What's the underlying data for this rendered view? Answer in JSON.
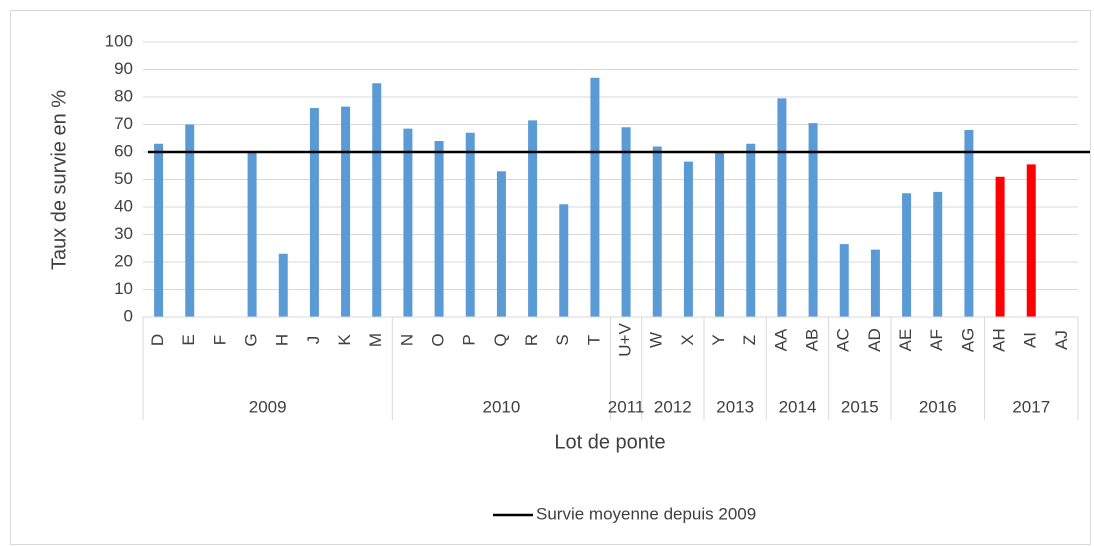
{
  "chart_data": {
    "type": "bar",
    "categories": [
      "D",
      "E",
      "F",
      "G",
      "H",
      "J",
      "K",
      "M",
      "N",
      "O",
      "P",
      "Q",
      "R",
      "S",
      "T",
      "U+V",
      "W",
      "X",
      "Y",
      "Z",
      "AA",
      "AB",
      "AC",
      "AD",
      "AE",
      "AF",
      "AG",
      "AH",
      "AI",
      "AJ"
    ],
    "values": [
      63,
      70,
      null,
      60,
      23,
      76,
      76.5,
      85,
      68.5,
      64,
      67,
      53,
      71.5,
      41,
      87,
      69,
      62,
      56.5,
      60,
      63,
      79.5,
      70.5,
      26.5,
      24.5,
      45,
      45.5,
      68,
      51,
      55.5,
      null
    ],
    "colors": [
      "#5b9bd5",
      "#5b9bd5",
      "#5b9bd5",
      "#5b9bd5",
      "#5b9bd5",
      "#5b9bd5",
      "#5b9bd5",
      "#5b9bd5",
      "#5b9bd5",
      "#5b9bd5",
      "#5b9bd5",
      "#5b9bd5",
      "#5b9bd5",
      "#5b9bd5",
      "#5b9bd5",
      "#5b9bd5",
      "#5b9bd5",
      "#5b9bd5",
      "#5b9bd5",
      "#5b9bd5",
      "#5b9bd5",
      "#5b9bd5",
      "#5b9bd5",
      "#5b9bd5",
      "#5b9bd5",
      "#5b9bd5",
      "#5b9bd5",
      "#ff0000",
      "#ff0000",
      "#5b9bd5"
    ],
    "groups": [
      {
        "label": "2009",
        "span": 8
      },
      {
        "label": "2010",
        "span": 7
      },
      {
        "label": "2011",
        "span": 1
      },
      {
        "label": "2012",
        "span": 2
      },
      {
        "label": "2013",
        "span": 2
      },
      {
        "label": "2014",
        "span": 2
      },
      {
        "label": "2015",
        "span": 2
      },
      {
        "label": "2016",
        "span": 3
      },
      {
        "label": "2017",
        "span": 3
      }
    ],
    "reference_line": {
      "name": "Survie moyenne depuis 2009",
      "value": 60,
      "color": "#000000"
    },
    "xlabel": "Lot de ponte",
    "ylabel": "Taux de survie en %",
    "ylim": [
      0,
      100
    ],
    "yticks": [
      0,
      10,
      20,
      30,
      40,
      50,
      60,
      70,
      80,
      90,
      100
    ],
    "grid": true,
    "legend": "bottom"
  }
}
